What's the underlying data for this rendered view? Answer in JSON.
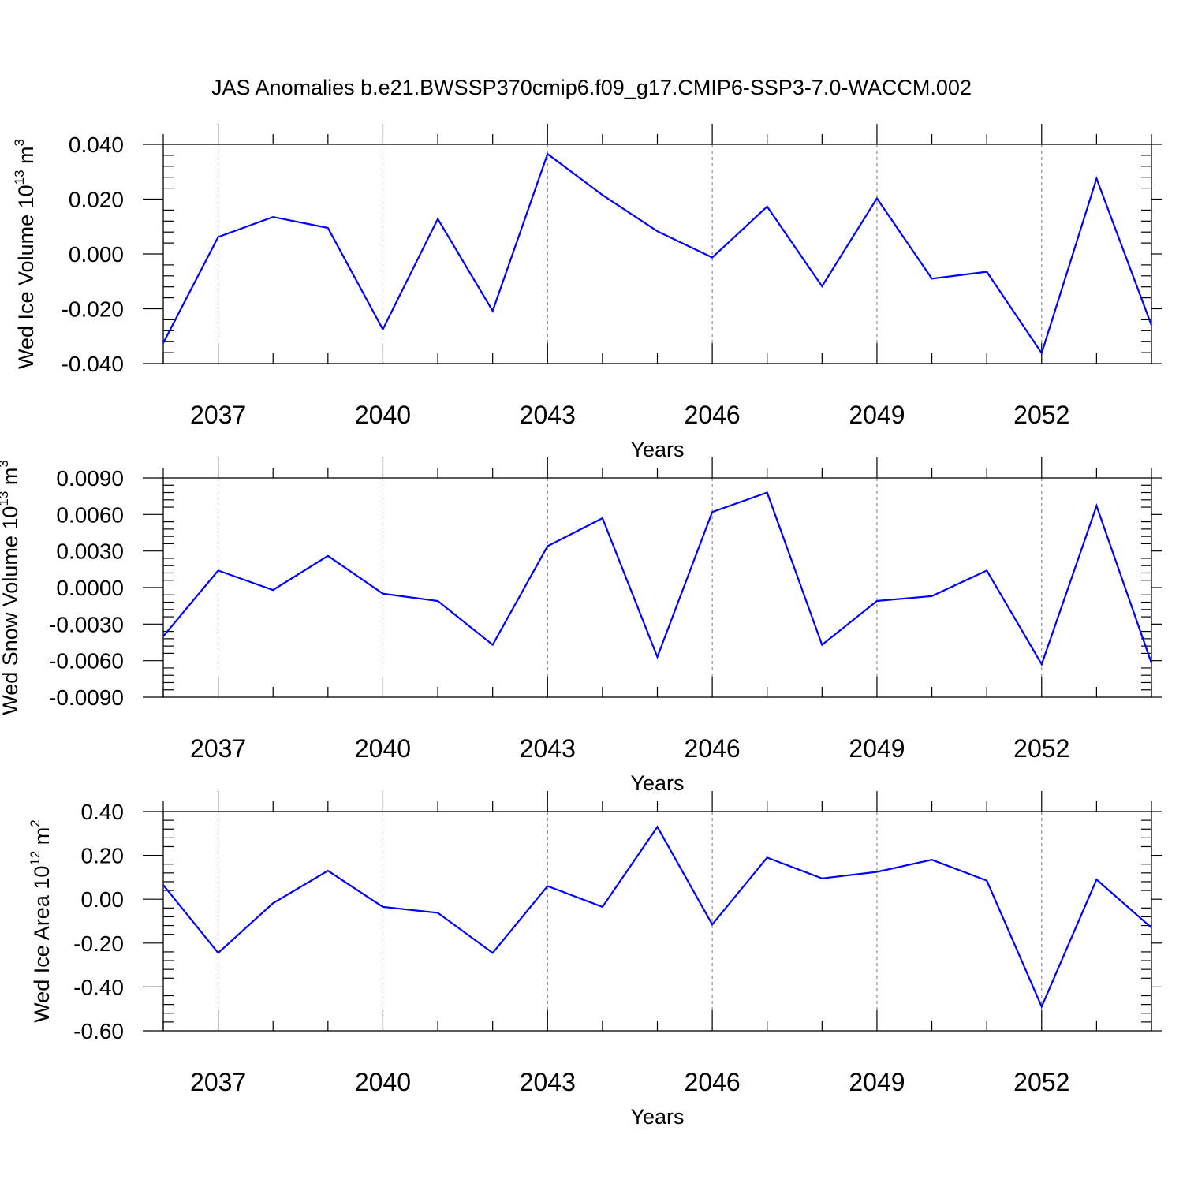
{
  "title": "JAS Anomalies b.e21.BWSSP370cmip6.f09_g17.CMIP6-SSP3-7.0-WACCM.002",
  "colors": {
    "series": "#0000ff",
    "axes": "#000000",
    "grid": "#777777"
  },
  "chart_data": [
    {
      "type": "line",
      "title": "",
      "xlabel": "Years",
      "ylabel": {
        "text": "Wed Ice Volume 10",
        "sup": "13",
        "unit": " m",
        "unit_sup": "3"
      },
      "xlim": [
        2036,
        2054
      ],
      "ylim": [
        -0.04,
        0.04
      ],
      "x_ticks": [
        "2037",
        "2040",
        "2043",
        "2046",
        "2049",
        "2052"
      ],
      "y_ticks": [
        "-0.040",
        "-0.020",
        "0.000",
        "0.020",
        "0.040"
      ],
      "grid": "vertical dashed at labeled years",
      "x": [
        2036,
        2037,
        2038,
        2039,
        2040,
        2041,
        2042,
        2043,
        2044,
        2045,
        2046,
        2047,
        2048,
        2049,
        2050,
        2051,
        2052,
        2053,
        2054
      ],
      "series": [
        {
          "values": [
            -0.0325,
            0.0062,
            0.0135,
            0.0095,
            -0.0275,
            0.0128,
            -0.0208,
            0.0365,
            0.0215,
            0.0083,
            -0.0013,
            0.0173,
            -0.0118,
            0.0203,
            -0.009,
            -0.0065,
            -0.0362,
            0.0275,
            -0.026
          ]
        }
      ]
    },
    {
      "type": "line",
      "title": "",
      "xlabel": "Years",
      "ylabel": {
        "text": "Wed Snow Volume 10",
        "sup": "13",
        "unit": " m",
        "unit_sup": "3"
      },
      "xlim": [
        2036,
        2054
      ],
      "ylim": [
        -0.009,
        0.009
      ],
      "x_ticks": [
        "2037",
        "2040",
        "2043",
        "2046",
        "2049",
        "2052"
      ],
      "y_ticks": [
        "-0.0090",
        "-0.0060",
        "-0.0030",
        "0.0000",
        "0.0030",
        "0.0060",
        "0.0090"
      ],
      "grid": "vertical dashed at labeled years",
      "x": [
        2036,
        2037,
        2038,
        2039,
        2040,
        2041,
        2042,
        2043,
        2044,
        2045,
        2046,
        2047,
        2048,
        2049,
        2050,
        2051,
        2052,
        2053,
        2054
      ],
      "series": [
        {
          "values": [
            -0.004,
            0.0014,
            -0.0002,
            0.0026,
            -0.0005,
            -0.0011,
            -0.0047,
            0.0034,
            0.0057,
            -0.0057,
            0.0062,
            0.0078,
            -0.0047,
            -0.0011,
            -0.0007,
            0.0014,
            -0.0063,
            0.0067,
            -0.0062
          ]
        }
      ]
    },
    {
      "type": "line",
      "title": "",
      "xlabel": "Years",
      "ylabel": {
        "text": "Wed Ice Area 10",
        "sup": "12",
        "unit": " m",
        "unit_sup": "2"
      },
      "xlim": [
        2036,
        2054
      ],
      "ylim": [
        -0.6,
        0.4
      ],
      "x_ticks": [
        "2037",
        "2040",
        "2043",
        "2046",
        "2049",
        "2052"
      ],
      "y_ticks": [
        "-0.60",
        "-0.40",
        "-0.20",
        "0.00",
        "0.20",
        "0.40"
      ],
      "grid": "vertical dashed at labeled years",
      "x": [
        2036,
        2037,
        2038,
        2039,
        2040,
        2041,
        2042,
        2043,
        2044,
        2045,
        2046,
        2047,
        2048,
        2049,
        2050,
        2051,
        2052,
        2053,
        2054
      ],
      "series": [
        {
          "values": [
            0.065,
            -0.245,
            -0.018,
            0.13,
            -0.035,
            -0.062,
            -0.245,
            0.06,
            -0.035,
            0.33,
            -0.115,
            0.19,
            0.095,
            0.125,
            0.18,
            0.085,
            -0.49,
            0.09,
            -0.13
          ]
        }
      ]
    }
  ]
}
